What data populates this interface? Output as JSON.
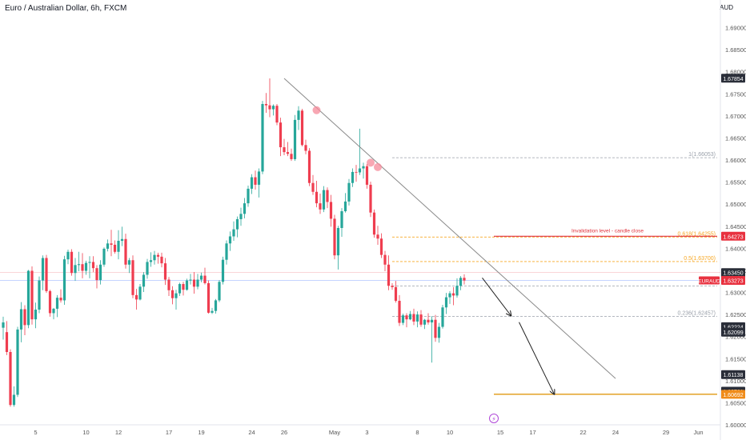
{
  "header": {
    "title": "Euro / Australian Dollar, 6h, FXCM"
  },
  "currency": "AUD",
  "colors": {
    "up": "#26a69a",
    "down": "#ef3d4f",
    "fib_orange": "#f7a825",
    "invalidation": "#e0303b",
    "grid_dash": "#9aa0aa",
    "trendline": "#8a8a8a",
    "current_bg": "#e8313f",
    "tag_dark": "#2a2e39",
    "tag_orange": "#f08c1a",
    "current_line": "#7c9cff"
  },
  "chart_data": {
    "type": "candlestick",
    "symbol": "EURAUD",
    "ylim": [
      1.6,
      1.695
    ],
    "ytick_labels": [
      "1.69000",
      "1.68500",
      "1.68000",
      "1.67500",
      "1.67000",
      "1.66500",
      "1.66000",
      "1.65500",
      "1.65000",
      "1.64500",
      "1.64000",
      "1.63500",
      "1.63000",
      "1.62500",
      "1.62000",
      "1.61500",
      "1.61000",
      "1.60500",
      "1.60000"
    ],
    "ytick_values": [
      1.69,
      1.685,
      1.68,
      1.675,
      1.67,
      1.665,
      1.66,
      1.655,
      1.65,
      1.645,
      1.64,
      1.635,
      1.63,
      1.625,
      1.62,
      1.615,
      1.61,
      1.605,
      1.6
    ],
    "xtick_labels": [
      "5",
      "10",
      "12",
      "17",
      "19",
      "24",
      "26",
      "May",
      "3",
      "8",
      "10",
      "15",
      "17",
      "22",
      "24",
      "29",
      "Jun"
    ],
    "xtick_index": [
      9,
      23,
      32,
      46,
      55,
      69,
      78,
      92,
      101,
      115,
      124,
      138,
      147,
      161,
      170,
      184,
      193
    ],
    "candles": [
      [
        1.622,
        1.6245,
        1.6193,
        1.6232
      ],
      [
        1.621,
        1.6235,
        1.6158,
        1.6165
      ],
      [
        1.6165,
        1.6171,
        1.6041,
        1.6045
      ],
      [
        1.6045,
        1.6087,
        1.6041,
        1.6068
      ],
      [
        1.6068,
        1.6222,
        1.6063,
        1.6216
      ],
      [
        1.6216,
        1.6278,
        1.6187,
        1.6262
      ],
      [
        1.6262,
        1.6271,
        1.6203,
        1.6226
      ],
      [
        1.6226,
        1.6351,
        1.6219,
        1.6349
      ],
      [
        1.6349,
        1.6359,
        1.6227,
        1.6239
      ],
      [
        1.6239,
        1.6277,
        1.6219,
        1.6261
      ],
      [
        1.6261,
        1.6336,
        1.6253,
        1.6327
      ],
      [
        1.6327,
        1.6384,
        1.6305,
        1.6378
      ],
      [
        1.6378,
        1.6385,
        1.6299,
        1.6303
      ],
      [
        1.6303,
        1.6306,
        1.6245,
        1.6253
      ],
      [
        1.6253,
        1.6265,
        1.6239,
        1.6263
      ],
      [
        1.6263,
        1.6294,
        1.6244,
        1.6288
      ],
      [
        1.6288,
        1.6307,
        1.6277,
        1.6282
      ],
      [
        1.6282,
        1.6383,
        1.6272,
        1.6375
      ],
      [
        1.6375,
        1.6397,
        1.6364,
        1.6392
      ],
      [
        1.6392,
        1.6398,
        1.6338,
        1.6344
      ],
      [
        1.6344,
        1.6378,
        1.6326,
        1.6362
      ],
      [
        1.6362,
        1.6392,
        1.6348,
        1.6364
      ],
      [
        1.6364,
        1.6389,
        1.6332,
        1.6349
      ],
      [
        1.6349,
        1.6372,
        1.634,
        1.6367
      ],
      [
        1.6367,
        1.6382,
        1.6332,
        1.6369
      ],
      [
        1.6369,
        1.6382,
        1.6346,
        1.6355
      ],
      [
        1.6355,
        1.6362,
        1.6309,
        1.6328
      ],
      [
        1.6328,
        1.6373,
        1.6318,
        1.6363
      ],
      [
        1.6363,
        1.6402,
        1.6358,
        1.6399
      ],
      [
        1.6399,
        1.642,
        1.6393,
        1.6411
      ],
      [
        1.6411,
        1.6442,
        1.6382,
        1.6408
      ],
      [
        1.6408,
        1.6418,
        1.6388,
        1.6392
      ],
      [
        1.6392,
        1.6441,
        1.6375,
        1.6417
      ],
      [
        1.6417,
        1.6449,
        1.6405,
        1.6421
      ],
      [
        1.6421,
        1.6433,
        1.6354,
        1.6363
      ],
      [
        1.6363,
        1.6378,
        1.6344,
        1.6373
      ],
      [
        1.6373,
        1.6384,
        1.6287,
        1.6294
      ],
      [
        1.6294,
        1.6308,
        1.6261,
        1.6284
      ],
      [
        1.6284,
        1.6319,
        1.6282,
        1.6313
      ],
      [
        1.6313,
        1.6346,
        1.6301,
        1.634
      ],
      [
        1.634,
        1.6376,
        1.6331,
        1.6369
      ],
      [
        1.6369,
        1.6391,
        1.6358,
        1.6373
      ],
      [
        1.6373,
        1.6394,
        1.6363,
        1.6385
      ],
      [
        1.6385,
        1.639,
        1.6365,
        1.6381
      ],
      [
        1.6381,
        1.639,
        1.6357,
        1.6366
      ],
      [
        1.6366,
        1.6378,
        1.6317,
        1.6329
      ],
      [
        1.6329,
        1.6335,
        1.6292,
        1.6305
      ],
      [
        1.6305,
        1.6314,
        1.6273,
        1.6287
      ],
      [
        1.6287,
        1.6306,
        1.6261,
        1.6298
      ],
      [
        1.6298,
        1.6322,
        1.6292,
        1.6319
      ],
      [
        1.6319,
        1.6324,
        1.6293,
        1.6306
      ],
      [
        1.6306,
        1.6331,
        1.6304,
        1.6327
      ],
      [
        1.6327,
        1.6342,
        1.6318,
        1.6329
      ],
      [
        1.6329,
        1.6346,
        1.6297,
        1.6313
      ],
      [
        1.6313,
        1.6342,
        1.6307,
        1.6329
      ],
      [
        1.6329,
        1.6345,
        1.6323,
        1.6338
      ],
      [
        1.6338,
        1.6356,
        1.6318,
        1.6321
      ],
      [
        1.6321,
        1.6327,
        1.6252,
        1.6254
      ],
      [
        1.6254,
        1.6265,
        1.6251,
        1.6258
      ],
      [
        1.6258,
        1.6285,
        1.6252,
        1.6282
      ],
      [
        1.6282,
        1.6328,
        1.6278,
        1.6324
      ],
      [
        1.6324,
        1.6381,
        1.6318,
        1.6374
      ],
      [
        1.6374,
        1.6418,
        1.6363,
        1.6411
      ],
      [
        1.6411,
        1.6438,
        1.6394,
        1.6427
      ],
      [
        1.6427,
        1.6461,
        1.6417,
        1.6443
      ],
      [
        1.6443,
        1.6472,
        1.6425,
        1.6466
      ],
      [
        1.6466,
        1.6492,
        1.6451,
        1.6478
      ],
      [
        1.6478,
        1.6514,
        1.6468,
        1.6502
      ],
      [
        1.6502,
        1.6542,
        1.6494,
        1.6535
      ],
      [
        1.6535,
        1.6568,
        1.6523,
        1.6561
      ],
      [
        1.6561,
        1.6576,
        1.6533,
        1.6544
      ],
      [
        1.6544,
        1.6581,
        1.6515,
        1.6574
      ],
      [
        1.6574,
        1.6734,
        1.6568,
        1.6727
      ],
      [
        1.6727,
        1.6752,
        1.6707,
        1.6724
      ],
      [
        1.6724,
        1.6785,
        1.6697,
        1.6715
      ],
      [
        1.6715,
        1.6726,
        1.6701,
        1.6723
      ],
      [
        1.6723,
        1.6727,
        1.6679,
        1.6685
      ],
      [
        1.6685,
        1.6696,
        1.6609,
        1.6629
      ],
      [
        1.6629,
        1.6648,
        1.6611,
        1.6618
      ],
      [
        1.6618,
        1.6641,
        1.6609,
        1.6614
      ],
      [
        1.6614,
        1.6626,
        1.6598,
        1.6602
      ],
      [
        1.6602,
        1.6702,
        1.6598,
        1.6691
      ],
      [
        1.6691,
        1.6722,
        1.6668,
        1.6712
      ],
      [
        1.6712,
        1.6716,
        1.6631,
        1.6634
      ],
      [
        1.6634,
        1.6646,
        1.6613,
        1.6621
      ],
      [
        1.6621,
        1.6627,
        1.6541,
        1.6548
      ],
      [
        1.6548,
        1.6566,
        1.6521,
        1.6528
      ],
      [
        1.6528,
        1.6553,
        1.6493,
        1.6502
      ],
      [
        1.6502,
        1.6524,
        1.6478,
        1.6488
      ],
      [
        1.6488,
        1.6541,
        1.6482,
        1.6532
      ],
      [
        1.6532,
        1.6538,
        1.6491,
        1.6505
      ],
      [
        1.6505,
        1.6521,
        1.6449,
        1.6467
      ],
      [
        1.6467,
        1.6476,
        1.6375,
        1.6384
      ],
      [
        1.6384,
        1.6451,
        1.6352,
        1.6446
      ],
      [
        1.6446,
        1.6491,
        1.6426,
        1.6484
      ],
      [
        1.6484,
        1.6525,
        1.6481,
        1.6506
      ],
      [
        1.6506,
        1.6557,
        1.6497,
        1.6548
      ],
      [
        1.6548,
        1.6581,
        1.6539,
        1.6573
      ],
      [
        1.6573,
        1.6589,
        1.6551,
        1.6572
      ],
      [
        1.6572,
        1.6671,
        1.6566,
        1.6581
      ],
      [
        1.6581,
        1.6594,
        1.6558,
        1.6586
      ],
      [
        1.6586,
        1.6591,
        1.6535,
        1.6544
      ],
      [
        1.6544,
        1.6551,
        1.6471,
        1.6481
      ],
      [
        1.6481,
        1.6488,
        1.6424,
        1.6431
      ],
      [
        1.6431,
        1.6451,
        1.6408,
        1.6422
      ],
      [
        1.6422,
        1.6434,
        1.6378,
        1.6385
      ],
      [
        1.6385,
        1.6394,
        1.6348,
        1.6363
      ],
      [
        1.6363,
        1.6384,
        1.6305,
        1.6315
      ],
      [
        1.6315,
        1.6321,
        1.6306,
        1.6312
      ],
      [
        1.6312,
        1.6326,
        1.6277,
        1.6281
      ],
      [
        1.6281,
        1.6294,
        1.6224,
        1.6231
      ],
      [
        1.6231,
        1.6252,
        1.6226,
        1.6248
      ],
      [
        1.6248,
        1.6253,
        1.6221,
        1.6239
      ],
      [
        1.6239,
        1.6258,
        1.6237,
        1.6251
      ],
      [
        1.6251,
        1.6263,
        1.6226,
        1.6234
      ],
      [
        1.6234,
        1.6257,
        1.6221,
        1.625
      ],
      [
        1.625,
        1.626,
        1.6222,
        1.6227
      ],
      [
        1.6227,
        1.624,
        1.6217,
        1.6238
      ],
      [
        1.6238,
        1.6253,
        1.6227,
        1.6232
      ],
      [
        1.6232,
        1.6246,
        1.6141,
        1.6238
      ],
      [
        1.6238,
        1.6249,
        1.6188,
        1.6197
      ],
      [
        1.6197,
        1.6231,
        1.6186,
        1.6222
      ],
      [
        1.6222,
        1.6272,
        1.6218,
        1.6266
      ],
      [
        1.6266,
        1.6299,
        1.6251,
        1.6289
      ],
      [
        1.6289,
        1.6303,
        1.6274,
        1.6298
      ],
      [
        1.6298,
        1.6312,
        1.6271,
        1.6293
      ],
      [
        1.6293,
        1.6332,
        1.6288,
        1.6315
      ],
      [
        1.6315,
        1.6337,
        1.6305,
        1.6333
      ],
      [
        1.6333,
        1.6341,
        1.6318,
        1.6327
      ]
    ],
    "fib_levels": [
      {
        "label": "1(1.66053)",
        "value": 1.66053
      },
      {
        "label": "0.618(1.64255)",
        "value": 1.64255
      },
      {
        "label": "0.5(1.63700)",
        "value": 1.637
      },
      {
        "label": "0.382",
        "value": 1.63145
      },
      {
        "label": "0.236(1.62457)",
        "value": 1.62457
      }
    ],
    "invalidation": {
      "label": "Invalidation level - candle close",
      "value": 1.64273
    },
    "target_level": 1.60692,
    "price_tags": [
      {
        "text": "1.67854",
        "value": 1.67854,
        "style": "dark"
      },
      {
        "text": "1.64273",
        "value": 1.64273,
        "style": "red"
      },
      {
        "text": "1.63450",
        "value": 1.6345,
        "style": "dark"
      },
      {
        "text": "1.63273",
        "value": 1.63273,
        "style": "red"
      },
      {
        "text": "1.62224",
        "value": 1.62224,
        "style": "dark"
      },
      {
        "text": "1.62099",
        "value": 1.62099,
        "style": "dark"
      },
      {
        "text": "1.61138",
        "value": 1.61138,
        "style": "dark"
      },
      {
        "text": "1.60761",
        "value": 1.60761,
        "style": "dark"
      },
      {
        "text": "1.60692",
        "value": 1.60692,
        "style": "orange"
      }
    ],
    "current_price": 1.63273,
    "trendline": {
      "from": [
        78,
        1.6785
      ],
      "to": [
        170,
        1.6105
      ]
    },
    "touch_points": [
      [
        87,
        1.6713
      ],
      [
        102,
        1.6594
      ],
      [
        104,
        1.6584
      ]
    ],
    "projection": [
      [
        133,
        1.6333
      ],
      [
        141,
        1.6247
      ],
      [
        153,
        1.6069
      ]
    ]
  }
}
